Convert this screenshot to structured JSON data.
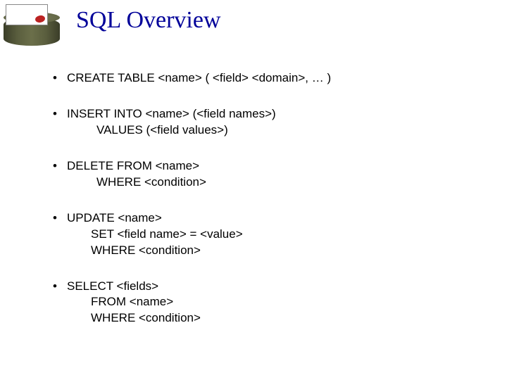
{
  "slide": {
    "title": "SQL Overview",
    "title_color": "#000099",
    "title_fontsize": 34,
    "background_color": "#ffffff",
    "bullet_char": "•",
    "body_fontsize": 17,
    "body_color": "#000000",
    "items": [
      {
        "line1": "CREATE TABLE <name> ( <field> <domain>, … )"
      },
      {
        "line1": "INSERT INTO <name> (<field names>)",
        "line2": "VALUES (<field values>)"
      },
      {
        "line1": "DELETE FROM <name>",
        "line2": "WHERE <condition>"
      },
      {
        "line1": "UPDATE <name>",
        "line2": "SET <field name> = <value>",
        "line3": "WHERE <condition>"
      },
      {
        "line1": "SELECT <fields>",
        "line2": "FROM <name>",
        "line3": "WHERE <condition>"
      }
    ],
    "icon": {
      "type": "database-cylinder",
      "color": "#5a5e3e"
    }
  }
}
